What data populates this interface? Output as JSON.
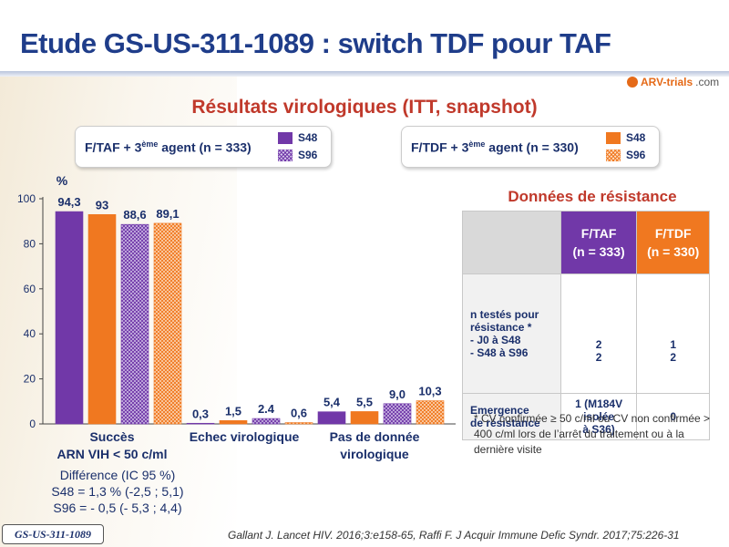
{
  "title": "Etude GS-US-311-1089 : switch TDF pour TAF",
  "logo": {
    "brand": "ARV-trials",
    "suffix": ".com"
  },
  "subtitle": "Résultats virologiques (ITT, snapshot)",
  "legend": {
    "taf": {
      "label_pre": "F/TAF + 3",
      "label_sup": "ème",
      "label_post": " agent (n = 333)",
      "s48": "S48",
      "s96": "S96"
    },
    "tdf": {
      "label_pre": "F/TDF + 3",
      "label_sup": "ème",
      "label_post": " agent (n = 330)",
      "s48": "S48",
      "s96": "S96"
    }
  },
  "colors": {
    "taf": "#7138a8",
    "tdf": "#f07820",
    "title": "#1f3d8a",
    "subtitle": "#c0392b"
  },
  "chart_data": {
    "type": "bar",
    "ylabel": "%",
    "ylim": [
      0,
      100
    ],
    "yticks": [
      0,
      20,
      40,
      60,
      80,
      100
    ],
    "categories": [
      "Succès ARN VIH < 50 c/ml",
      "Echec virologique",
      "Pas de donnée virologique"
    ],
    "category_lines": [
      [
        "Succès",
        "ARN VIH < 50 c/ml"
      ],
      [
        "Echec virologique"
      ],
      [
        "Pas de donnée",
        "virologique"
      ]
    ],
    "series": [
      {
        "name": "F/TAF S48",
        "values": [
          94.3,
          0.3,
          5.4
        ],
        "labels": [
          "94,3",
          "0,3",
          "5,4"
        ],
        "color": "#7138a8",
        "hatched": false
      },
      {
        "name": "F/TDF S48",
        "values": [
          93,
          1.5,
          5.5
        ],
        "labels": [
          "93",
          "1,5",
          "5,5"
        ],
        "color": "#f07820",
        "hatched": false
      },
      {
        "name": "F/TAF S96",
        "values": [
          88.6,
          2.4,
          9.0
        ],
        "labels": [
          "88,6",
          "2.4",
          "9,0"
        ],
        "color": "#7138a8",
        "hatched": true
      },
      {
        "name": "F/TDF S96",
        "values": [
          89.1,
          0.6,
          10.3
        ],
        "labels": [
          "89,1",
          "0,6",
          "10,3"
        ],
        "color": "#f07820",
        "hatched": true
      }
    ]
  },
  "difference": {
    "heading": "Différence (IC 95 %)",
    "s48": "S48 = 1,3 % (-2,5 ; 5,1)",
    "s96": "S96 = - 0,5 (- 5,3 ; 4,4)"
  },
  "resistance": {
    "title": "Données de résistance",
    "col_taf": [
      "F/TAF",
      "(n = 333)"
    ],
    "col_tdf": [
      "F/TDF",
      "(n = 330)"
    ],
    "row1_head": [
      "n testés pour",
      "résistance *",
      "- J0 à S48",
      "- S48 à S96"
    ],
    "row1_taf": [
      "2",
      "2"
    ],
    "row1_tdf": [
      "1",
      "2"
    ],
    "row2_head": [
      "Emergence",
      "de résistance"
    ],
    "row2_taf": [
      "1 (M184V",
      "isolée",
      "à S36)"
    ],
    "row2_tdf": "0"
  },
  "footnote": "* CV confirmée ≥ 50 c/ml ou CV non confirmée > 400 c/ml lors de l’arrêt du traitement ou à la dernière visite",
  "reference": "Gallant J. Lancet HIV. 2016;3:e158-65, Raffi F. J Acquir Immune Defic Syndr. 2017;75:226-31",
  "study_tag": "GS-US-311-1089"
}
